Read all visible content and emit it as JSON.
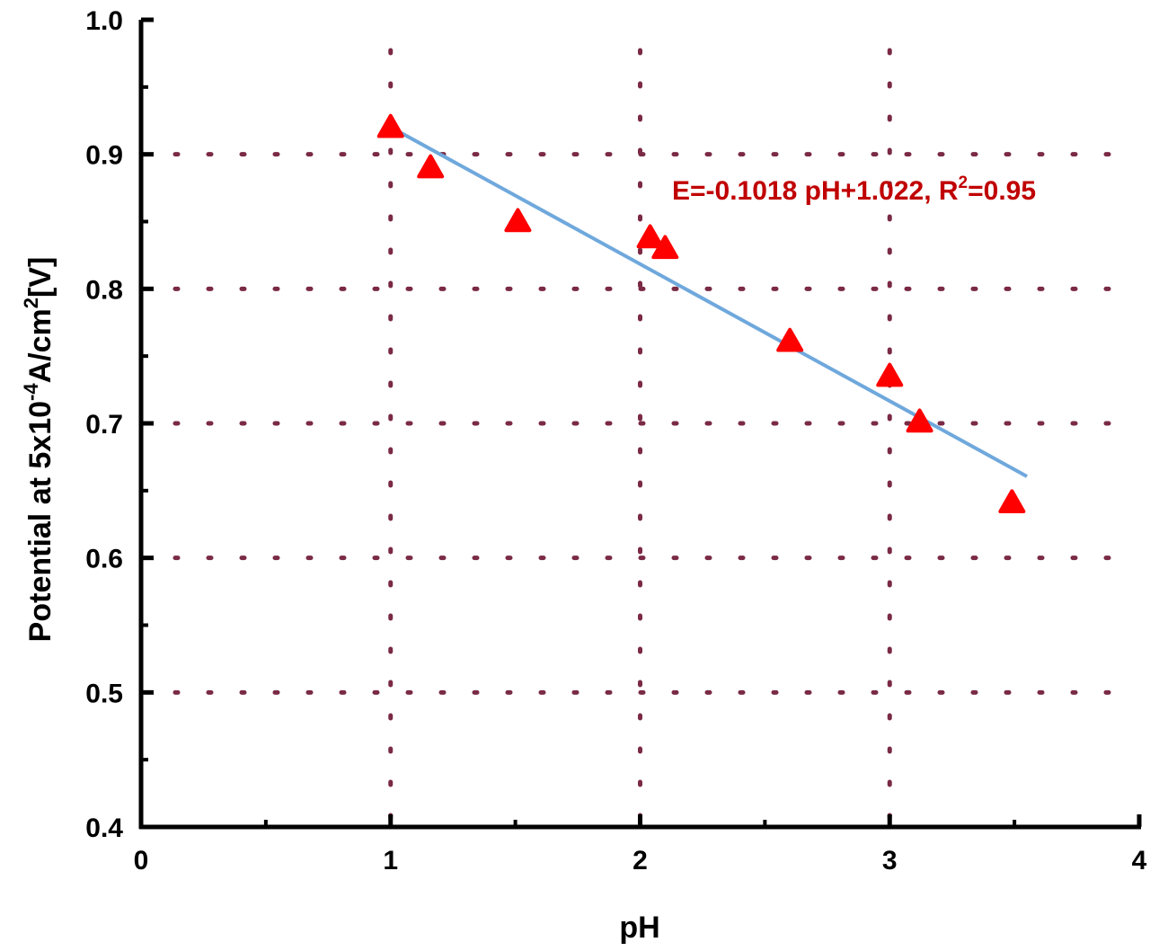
{
  "chart_data": {
    "type": "scatter",
    "title": "",
    "xlabel": "pH",
    "ylabel_parts": [
      "Potential at 5x10",
      "-4",
      "A/cm",
      "2",
      "[V]"
    ],
    "xlim": [
      0,
      4
    ],
    "ylim": [
      0.4,
      1.0
    ],
    "xticks": [
      "0",
      "1",
      "2",
      "3",
      "4"
    ],
    "yticks": [
      "0.4",
      "0.5",
      "0.6",
      "0.7",
      "0.8",
      "0.9",
      "1.0"
    ],
    "grid": true,
    "series": [
      {
        "marker": "triangle",
        "color": "#ff0000",
        "points": [
          {
            "x": 1.0,
            "y": 0.92
          },
          {
            "x": 1.16,
            "y": 0.89
          },
          {
            "x": 1.51,
            "y": 0.85
          },
          {
            "x": 2.04,
            "y": 0.838
          },
          {
            "x": 2.1,
            "y": 0.83
          },
          {
            "x": 2.6,
            "y": 0.761
          },
          {
            "x": 3.0,
            "y": 0.735
          },
          {
            "x": 3.12,
            "y": 0.701
          },
          {
            "x": 3.49,
            "y": 0.641
          }
        ]
      }
    ],
    "fit": {
      "slope": -0.1018,
      "intercept": 1.022,
      "x_range": [
        0.98,
        3.55
      ],
      "color": "#6fa8dc"
    },
    "annotation": {
      "main": "E=-0.1018 pH+1.022, R",
      "sup": "2",
      "tail": "=0.95",
      "color": "#c00000"
    },
    "grid_color": "#7a2a45"
  }
}
